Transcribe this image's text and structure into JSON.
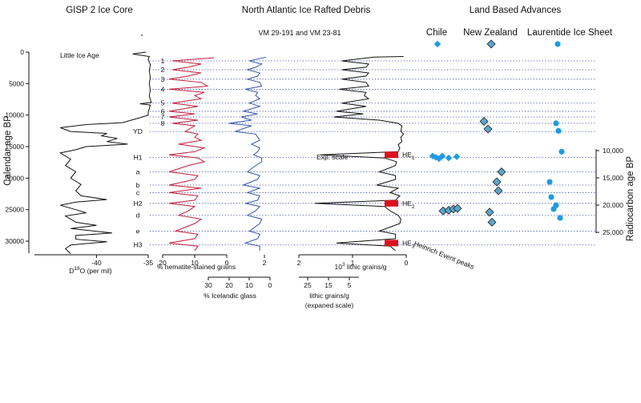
{
  "titles": {
    "gisp": "GISP 2 Ice Core",
    "nair": "North Atlantic Ice Rafted Debris",
    "cores": "VM 29-191 and VM 23-81",
    "land": "Land Based Advances"
  },
  "land_cols": {
    "chile": "Chile",
    "nz": "New Zealand",
    "lis": "Laurentide Ice Sheet"
  },
  "axes": {
    "left_label": "Calendar age BP",
    "right_label": "Radiocarbon age BP",
    "x_d18o": "D18O (per mil)",
    "x_hem": "% hematite-stained grains",
    "x_ice": "% Icelandic glass",
    "x_lith": "10³ lithic grains/g",
    "x_lith_exp": "lithic grains/g",
    "x_lith_exp2": "(expaned scale)"
  },
  "ticks": {
    "cal": [
      "0",
      "5000",
      "10000",
      "15000",
      "20000",
      "25000",
      "30000"
    ],
    "rad": [
      "10,000",
      "15,000",
      "20,000",
      "25,000"
    ],
    "d18o": [
      "-40",
      "-35"
    ],
    "hem": [
      "20",
      "10",
      "0"
    ],
    "hem_right": "2",
    "ice": [
      "30",
      "20",
      "10",
      "0"
    ],
    "lith": [
      "2",
      "1",
      "0"
    ],
    "lith_exp": [
      "25",
      "15",
      "5"
    ]
  },
  "annotations": {
    "lia": "Little Ice Age",
    "exp": "Exp. scale",
    "hep": "Heinrich Event peaks"
  },
  "events": [
    "1",
    "2",
    "3",
    "4",
    "5",
    "6",
    "7",
    "8",
    "YD",
    "H1",
    "a",
    "b",
    "c",
    "H2",
    "d",
    "e",
    "H3"
  ],
  "heinrich_labels": [
    {
      "txt": "HE",
      "sub": "1"
    },
    {
      "txt": "HE",
      "sub": "2"
    },
    {
      "txt": "HE",
      "sub": "3"
    }
  ],
  "colors": {
    "ice": "#111111",
    "hem": "#c41a3a",
    "glass": "#3556a8",
    "lith": "#111111",
    "marker": "#1f9be0",
    "bar": "#dc1020",
    "dot": "#2a3c9c"
  },
  "chart_data": {
    "type": "line",
    "title": "GISP 2 Ice Core / North Atlantic Ice Rafted Debris / Land Based Advances",
    "y_axis": {
      "label": "Calendar age BP",
      "range": [
        0,
        32000
      ],
      "ticks": [
        0,
        5000,
        10000,
        15000,
        20000,
        25000,
        30000
      ]
    },
    "y2_axis": {
      "label": "Radiocarbon age BP",
      "ticks": [
        10000,
        15000,
        20000,
        25000
      ]
    },
    "event_ages": [
      1400,
      2800,
      4300,
      5900,
      8100,
      9400,
      10300,
      11300,
      12600,
      16700,
      19000,
      21100,
      22300,
      24000,
      25900,
      28400,
      30600
    ],
    "heinrich_events": [
      {
        "name": "HE1",
        "age": 16300
      },
      {
        "name": "HE2",
        "age": 24000
      },
      {
        "name": "HE3",
        "age": 30300
      }
    ],
    "series": [
      {
        "name": "GISP2 d18O (per mil)",
        "x_range": [
          -46,
          -35
        ],
        "points": [
          [
            0,
            -35.2
          ],
          [
            300,
            -36.5
          ],
          [
            700,
            -34.9
          ],
          [
            1200,
            -35.0
          ],
          [
            2000,
            -34.8
          ],
          [
            3000,
            -34.9
          ],
          [
            4000,
            -34.8
          ],
          [
            5000,
            -34.9
          ],
          [
            6000,
            -34.8
          ],
          [
            7000,
            -34.9
          ],
          [
            8000,
            -34.7
          ],
          [
            8200,
            -35.8
          ],
          [
            8400,
            -34.8
          ],
          [
            9000,
            -34.9
          ],
          [
            9500,
            -35.0
          ],
          [
            10000,
            -35.0
          ],
          [
            10500,
            -36.0
          ],
          [
            11200,
            -37.5
          ],
          [
            11500,
            -41.0
          ],
          [
            12000,
            -43.5
          ],
          [
            12600,
            -42.5
          ],
          [
            12900,
            -39.0
          ],
          [
            13300,
            -39.5
          ],
          [
            13700,
            -38.0
          ],
          [
            14200,
            -39.0
          ],
          [
            14600,
            -37.0
          ],
          [
            15000,
            -41.0
          ],
          [
            15500,
            -42.0
          ],
          [
            16000,
            -43.5
          ],
          [
            17000,
            -42.5
          ],
          [
            18000,
            -43.0
          ],
          [
            19000,
            -42.0
          ],
          [
            20000,
            -42.5
          ],
          [
            21000,
            -41.5
          ],
          [
            22000,
            -42.0
          ],
          [
            22800,
            -41.5
          ],
          [
            23400,
            -39.0
          ],
          [
            23800,
            -42.0
          ],
          [
            24300,
            -43.5
          ],
          [
            25000,
            -42.0
          ],
          [
            25500,
            -41.0
          ],
          [
            26000,
            -43.0
          ],
          [
            27000,
            -42.0
          ],
          [
            27500,
            -40.0
          ],
          [
            28000,
            -42.5
          ],
          [
            28700,
            -38.5
          ],
          [
            29100,
            -42.0
          ],
          [
            29700,
            -42.0
          ],
          [
            30100,
            -39.0
          ],
          [
            30600,
            -42.5
          ],
          [
            31200,
            -43.0
          ],
          [
            32000,
            -42.5
          ]
        ]
      },
      {
        "name": "% hematite-stained grains",
        "x_range": [
          20,
          0
        ],
        "points": [
          [
            900,
            4
          ],
          [
            1400,
            17
          ],
          [
            1900,
            8
          ],
          [
            2400,
            12
          ],
          [
            2800,
            17
          ],
          [
            3300,
            8
          ],
          [
            3800,
            12
          ],
          [
            4300,
            18
          ],
          [
            4800,
            8
          ],
          [
            5400,
            6
          ],
          [
            5900,
            18
          ],
          [
            6400,
            7
          ],
          [
            6900,
            10
          ],
          [
            7400,
            8
          ],
          [
            8100,
            17
          ],
          [
            8600,
            9
          ],
          [
            9400,
            18
          ],
          [
            9800,
            10
          ],
          [
            10300,
            18
          ],
          [
            10800,
            9
          ],
          [
            11300,
            17
          ],
          [
            11700,
            10
          ],
          [
            12600,
            13
          ],
          [
            13000,
            9
          ],
          [
            13500,
            10
          ],
          [
            14000,
            8
          ],
          [
            14600,
            15
          ],
          [
            15200,
            7
          ],
          [
            15800,
            10
          ],
          [
            16300,
            18
          ],
          [
            16800,
            9
          ],
          [
            17400,
            7
          ],
          [
            18000,
            12
          ],
          [
            19000,
            18
          ],
          [
            19600,
            9
          ],
          [
            20200,
            10
          ],
          [
            21100,
            18
          ],
          [
            21600,
            8
          ],
          [
            22300,
            18
          ],
          [
            22800,
            9
          ],
          [
            23500,
            10
          ],
          [
            24000,
            18
          ],
          [
            24500,
            10
          ],
          [
            25200,
            12
          ],
          [
            25900,
            15
          ],
          [
            26500,
            8
          ],
          [
            27200,
            10
          ],
          [
            28400,
            16
          ],
          [
            28900,
            9
          ],
          [
            29600,
            10
          ],
          [
            30300,
            18
          ],
          [
            30800,
            9
          ],
          [
            31500,
            10
          ]
        ]
      },
      {
        "name": "% Icelandic glass",
        "x_range": [
          30,
          0
        ],
        "points": [
          [
            800,
            2
          ],
          [
            1400,
            10
          ],
          [
            1900,
            4
          ],
          [
            2400,
            7
          ],
          [
            2800,
            11
          ],
          [
            3300,
            5
          ],
          [
            3800,
            6
          ],
          [
            4300,
            11
          ],
          [
            4800,
            5
          ],
          [
            5400,
            4
          ],
          [
            5900,
            12
          ],
          [
            6400,
            6
          ],
          [
            6900,
            7
          ],
          [
            7400,
            5
          ],
          [
            8100,
            10
          ],
          [
            8600,
            5
          ],
          [
            9400,
            13
          ],
          [
            9800,
            6
          ],
          [
            10300,
            14
          ],
          [
            10800,
            9
          ],
          [
            11300,
            20
          ],
          [
            11700,
            9
          ],
          [
            12600,
            17
          ],
          [
            13000,
            7
          ],
          [
            13500,
            6
          ],
          [
            14000,
            5
          ],
          [
            14600,
            9
          ],
          [
            15200,
            5
          ],
          [
            15800,
            6
          ],
          [
            16300,
            8
          ],
          [
            16800,
            4
          ],
          [
            17400,
            4
          ],
          [
            18000,
            7
          ],
          [
            19000,
            11
          ],
          [
            19600,
            5
          ],
          [
            20200,
            6
          ],
          [
            21100,
            13
          ],
          [
            21600,
            5
          ],
          [
            22300,
            11
          ],
          [
            22800,
            5
          ],
          [
            23500,
            6
          ],
          [
            24000,
            12
          ],
          [
            24500,
            5
          ],
          [
            25200,
            7
          ],
          [
            25900,
            11
          ],
          [
            26500,
            4
          ],
          [
            27200,
            5
          ],
          [
            28400,
            10
          ],
          [
            28900,
            5
          ],
          [
            29600,
            6
          ],
          [
            30300,
            12
          ],
          [
            30800,
            5
          ],
          [
            31500,
            5
          ]
        ]
      },
      {
        "name": "10³ lithic grains/g",
        "x_range": [
          2,
          0
        ],
        "points": [
          [
            700,
            0.05
          ],
          [
            800,
            0.6
          ],
          [
            1400,
            1.2
          ],
          [
            1900,
            0.7
          ],
          [
            2400,
            0.75
          ],
          [
            2800,
            1.2
          ],
          [
            3300,
            0.7
          ],
          [
            3800,
            0.75
          ],
          [
            4300,
            1.2
          ],
          [
            4800,
            0.75
          ],
          [
            5400,
            0.7
          ],
          [
            5900,
            1.25
          ],
          [
            6400,
            0.75
          ],
          [
            6900,
            0.78
          ],
          [
            7400,
            0.7
          ],
          [
            8100,
            1.2
          ],
          [
            8600,
            0.75
          ],
          [
            9400,
            1.3
          ],
          [
            9800,
            0.8
          ],
          [
            10300,
            1.35
          ],
          [
            10800,
            0.5
          ],
          [
            11300,
            0.15
          ],
          [
            11700,
            0.08
          ],
          [
            12600,
            0.1
          ],
          [
            13000,
            0.05
          ],
          [
            13500,
            0.1
          ],
          [
            14200,
            0.08
          ],
          [
            14700,
            0.15
          ],
          [
            15200,
            0.12
          ],
          [
            15800,
            0.15
          ],
          [
            16300,
            1.6
          ],
          [
            16800,
            0.4
          ],
          [
            17400,
            0.18
          ],
          [
            18000,
            0.2
          ],
          [
            19000,
            0.5
          ],
          [
            19600,
            0.2
          ],
          [
            20200,
            0.2
          ],
          [
            21100,
            0.55
          ],
          [
            21600,
            0.15
          ],
          [
            22300,
            0.3
          ],
          [
            22800,
            0.12
          ],
          [
            23500,
            0.2
          ],
          [
            24000,
            1.7
          ],
          [
            24500,
            0.4
          ],
          [
            25200,
            0.3
          ],
          [
            25900,
            0.15
          ],
          [
            26500,
            0.1
          ],
          [
            27200,
            0.12
          ],
          [
            28400,
            0.5
          ],
          [
            28900,
            0.2
          ],
          [
            29600,
            0.2
          ],
          [
            30300,
            1.3
          ],
          [
            30800,
            0.3
          ],
          [
            31500,
            0.2
          ]
        ]
      },
      {
        "name": "Chile advances",
        "x_offsets": [
          0,
          4,
          8,
          12,
          16,
          24,
          32
        ],
        "points": [
          [
            0
          ],
          [
            16500
          ],
          [
            16700
          ],
          [
            16900
          ],
          [
            16500
          ],
          [
            16800
          ],
          [
            16600
          ],
          [
            16500
          ]
        ]
      },
      {
        "name": "New Zealand advances",
        "points": [
          0,
          11000,
          12200,
          19000,
          20600,
          22000,
          25400,
          27000
        ]
      },
      {
        "name": "Laurentide Ice Sheet advances",
        "points": [
          0,
          11300,
          12500,
          15800,
          20600,
          23000,
          24300,
          24900,
          26300
        ]
      }
    ]
  }
}
